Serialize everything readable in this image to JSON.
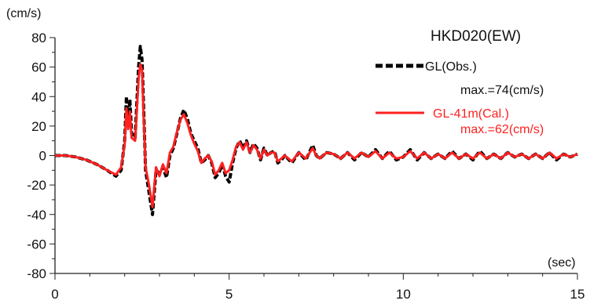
{
  "chart_data": {
    "type": "line",
    "title": "HKD020(EW)",
    "xlabel": "(sec)",
    "ylabel": "(cm/s)",
    "xlim": [
      0,
      15
    ],
    "ylim": [
      -80,
      80
    ],
    "xticks": [
      0,
      5,
      10,
      15
    ],
    "yticks": [
      -80,
      -60,
      -40,
      -20,
      0,
      20,
      40,
      60,
      80
    ],
    "grid": false,
    "legend_position": "top-right",
    "series": [
      {
        "name": "GL(Obs.)",
        "annotation": "max.=74(cm/s)",
        "color": "#000000",
        "style": "dashed",
        "x": [
          0,
          0.3,
          0.6,
          0.9,
          1.2,
          1.5,
          1.75,
          1.9,
          2.0,
          2.05,
          2.1,
          2.15,
          2.2,
          2.3,
          2.4,
          2.45,
          2.5,
          2.55,
          2.6,
          2.7,
          2.8,
          2.9,
          3.0,
          3.1,
          3.2,
          3.3,
          3.4,
          3.5,
          3.6,
          3.7,
          3.8,
          3.9,
          4.0,
          4.1,
          4.2,
          4.3,
          4.4,
          4.5,
          4.6,
          4.7,
          4.8,
          4.9,
          5.0,
          5.1,
          5.2,
          5.3,
          5.4,
          5.5,
          5.6,
          5.7,
          5.8,
          5.9,
          6.0,
          6.1,
          6.2,
          6.3,
          6.4,
          6.5,
          6.6,
          6.8,
          7.0,
          7.2,
          7.4,
          7.5,
          7.6,
          7.8,
          8.0,
          8.2,
          8.4,
          8.6,
          8.8,
          9.0,
          9.2,
          9.4,
          9.6,
          9.8,
          10.0,
          10.2,
          10.4,
          10.6,
          10.8,
          11.0,
          11.2,
          11.4,
          11.6,
          11.8,
          12.0,
          12.2,
          12.4,
          12.6,
          12.8,
          13.0,
          13.2,
          13.4,
          13.6,
          13.8,
          14.0,
          14.2,
          14.4,
          14.6,
          14.8,
          15.0
        ],
        "y": [
          0,
          0,
          -1,
          -3,
          -6,
          -10,
          -14,
          -10,
          10,
          40,
          20,
          38,
          15,
          12,
          60,
          74,
          65,
          30,
          -10,
          -25,
          -40,
          -10,
          -12,
          -8,
          -15,
          0,
          5,
          15,
          25,
          31,
          25,
          15,
          10,
          5,
          -5,
          -3,
          0,
          -5,
          -15,
          -12,
          -6,
          -14,
          -18,
          -5,
          5,
          10,
          5,
          10,
          2,
          8,
          5,
          -3,
          5,
          0,
          2,
          3,
          -5,
          -3,
          0,
          -5,
          2,
          -3,
          7,
          0,
          -2,
          2,
          1,
          -2,
          2,
          -3,
          2,
          -1,
          4,
          -2,
          3,
          -3,
          -1,
          4,
          -3,
          2,
          -2,
          1,
          -2,
          3,
          -2,
          1,
          -3,
          3,
          -2,
          1,
          -2,
          2,
          -1,
          1,
          -2,
          1,
          -2,
          2,
          -3,
          1,
          -1,
          1
        ]
      },
      {
        "name": "GL-41m(Cal.)",
        "annotation": "max.=62(cm/s)",
        "color": "#ff2020",
        "style": "solid",
        "x": [
          0,
          0.3,
          0.6,
          0.9,
          1.2,
          1.5,
          1.75,
          1.9,
          2.0,
          2.05,
          2.1,
          2.15,
          2.2,
          2.3,
          2.4,
          2.45,
          2.5,
          2.55,
          2.6,
          2.7,
          2.8,
          2.9,
          3.0,
          3.1,
          3.2,
          3.3,
          3.4,
          3.5,
          3.6,
          3.7,
          3.8,
          3.9,
          4.0,
          4.1,
          4.2,
          4.3,
          4.4,
          4.5,
          4.6,
          4.7,
          4.8,
          4.9,
          5.0,
          5.1,
          5.2,
          5.3,
          5.4,
          5.5,
          5.6,
          5.7,
          5.8,
          5.9,
          6.0,
          6.1,
          6.2,
          6.3,
          6.4,
          6.5,
          6.6,
          6.8,
          7.0,
          7.2,
          7.4,
          7.5,
          7.6,
          7.8,
          8.0,
          8.2,
          8.4,
          8.6,
          8.8,
          9.0,
          9.2,
          9.4,
          9.6,
          9.8,
          10.0,
          10.2,
          10.4,
          10.6,
          10.8,
          11.0,
          11.2,
          11.4,
          11.6,
          11.8,
          12.0,
          12.2,
          12.4,
          12.6,
          12.8,
          13.0,
          13.2,
          13.4,
          13.6,
          13.8,
          14.0,
          14.2,
          14.4,
          14.6,
          14.8,
          15.0
        ],
        "y": [
          0,
          0,
          -1,
          -3,
          -6,
          -10,
          -13,
          -8,
          8,
          32,
          18,
          30,
          12,
          10,
          52,
          62,
          58,
          25,
          -8,
          -20,
          -35,
          -8,
          -14,
          -6,
          -12,
          2,
          6,
          16,
          24,
          28,
          22,
          14,
          8,
          3,
          -5,
          -2,
          0,
          -4,
          -13,
          -10,
          -5,
          -12,
          -10,
          -3,
          6,
          9,
          4,
          9,
          2,
          7,
          4,
          -2,
          4,
          0,
          2,
          2,
          -4,
          -2,
          0,
          -4,
          2,
          -2,
          5,
          0,
          -2,
          2,
          1,
          -2,
          2,
          -2,
          2,
          -1,
          3,
          -2,
          2,
          -2,
          -1,
          3,
          -2,
          2,
          -2,
          1,
          -2,
          2,
          -2,
          1,
          -2,
          2,
          -2,
          1,
          -2,
          2,
          -1,
          1,
          -2,
          1,
          -2,
          2,
          -2,
          1,
          -1,
          1
        ]
      }
    ]
  }
}
